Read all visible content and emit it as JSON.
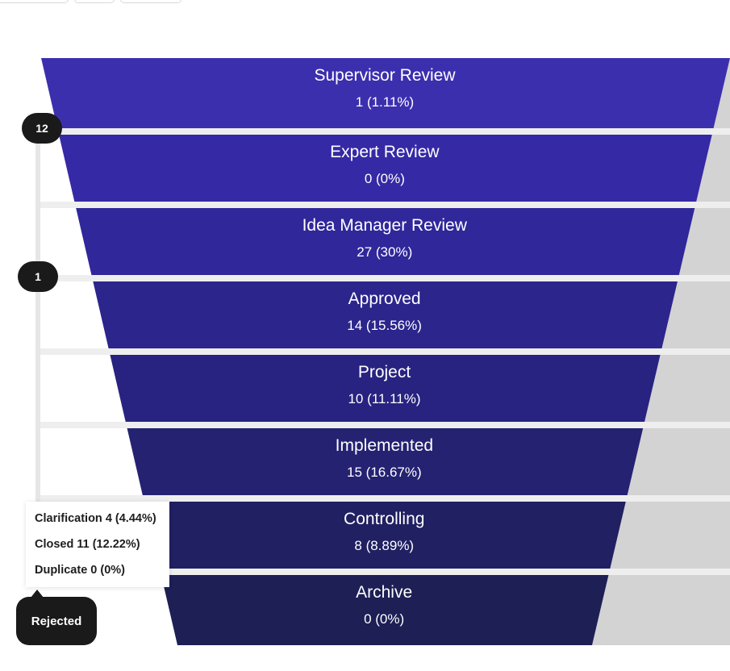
{
  "chart_data": {
    "type": "funnel",
    "stages": [
      {
        "label": "Supervisor Review",
        "value_text": "1 (1.11%)",
        "value": 1,
        "percent": 1.11,
        "color": "#3c2fae"
      },
      {
        "label": "Expert Review",
        "value_text": "0 (0%)",
        "value": 0,
        "percent": 0,
        "color": "#3529a5"
      },
      {
        "label": "Idea Manager Review",
        "value_text": "27 (30%)",
        "value": 27,
        "percent": 30,
        "color": "#30279a"
      },
      {
        "label": "Approved",
        "value_text": "14 (15.56%)",
        "value": 14,
        "percent": 15.56,
        "color": "#2c258c"
      },
      {
        "label": "Project",
        "value_text": "10 (11.11%)",
        "value": 10,
        "percent": 11.11,
        "color": "#282380"
      },
      {
        "label": "Implemented",
        "value_text": "15 (16.67%)",
        "value": 15,
        "percent": 16.67,
        "color": "#252272"
      },
      {
        "label": "Controlling",
        "value_text": "8 (8.89%)",
        "value": 8,
        "percent": 8.89,
        "color": "#212062"
      },
      {
        "label": "Archive",
        "value_text": "0 (0%)",
        "value": 0,
        "percent": 0,
        "color": "#1d1f55"
      }
    ],
    "markers": [
      {
        "label": "12",
        "stage_index": 0
      },
      {
        "label": "1",
        "stage_index": 2
      }
    ],
    "rejected": {
      "label": "Rejected",
      "items": [
        {
          "text": "Clarification 4 (4.44%)"
        },
        {
          "text": "Closed 11 (12.22%)"
        },
        {
          "text": "Duplicate 0 (0%)"
        }
      ]
    }
  },
  "colors": {
    "separator": "#eeeeee",
    "right_band": "#d3d3d3",
    "bubble": "#1a1a1a",
    "connector": "#e6e6e6"
  }
}
